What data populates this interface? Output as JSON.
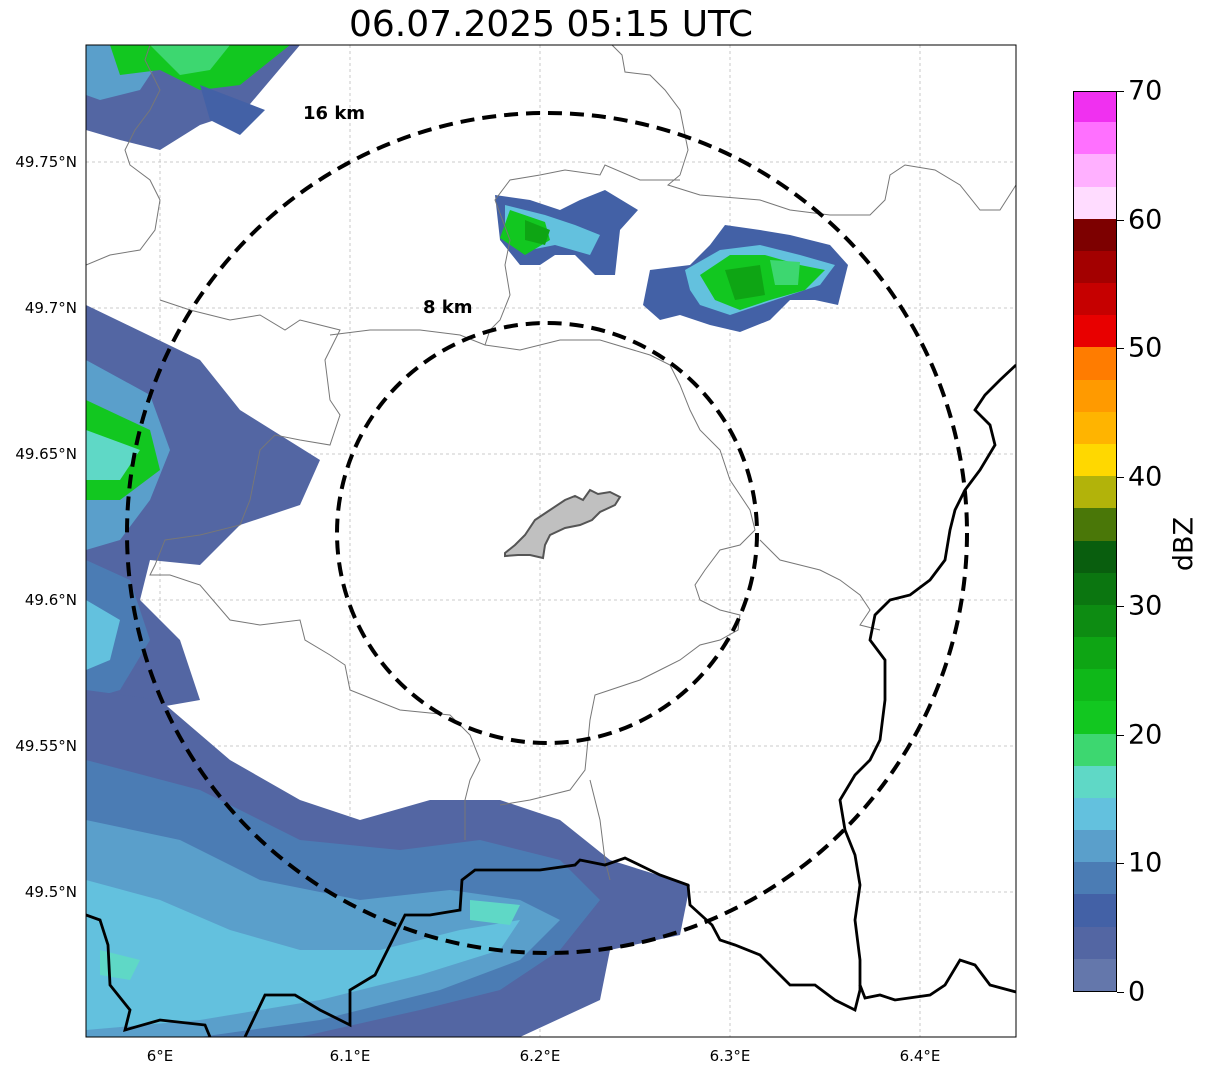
{
  "title": "06.07.2025 05:15 UTC",
  "lon_ticks": [
    {
      "lon": 6.0,
      "label": "6°E"
    },
    {
      "lon": 6.1,
      "label": "6.1°E"
    },
    {
      "lon": 6.2,
      "label": "6.2°E"
    },
    {
      "lon": 6.3,
      "label": "6.3°E"
    },
    {
      "lon": 6.4,
      "label": "6.4°E"
    }
  ],
  "lat_ticks": [
    {
      "lat": 49.75,
      "label": "49.75°N"
    },
    {
      "lat": 49.7,
      "label": "49.7°N"
    },
    {
      "lat": 49.65,
      "label": "49.65°N"
    },
    {
      "lat": 49.6,
      "label": "49.6°N"
    },
    {
      "lat": 49.55,
      "label": "49.55°N"
    },
    {
      "lat": 49.5,
      "label": "49.5°N"
    }
  ],
  "extent": {
    "lon": [
      5.96,
      6.45
    ],
    "lat": [
      49.45,
      49.79
    ]
  },
  "rings": [
    {
      "label": "8 km",
      "radius_km": 8
    },
    {
      "label": "16 km",
      "radius_km": 16
    }
  ],
  "colorbar": {
    "label": "dBZ",
    "min": 0,
    "max": 70,
    "ticks": [
      "0",
      "10",
      "20",
      "30",
      "40",
      "50",
      "60",
      "70"
    ],
    "colors": [
      "#6477ab",
      "#5366a3",
      "#4361a6",
      "#4b7cb4",
      "#5a9fcb",
      "#63c1de",
      "#5fd8c6",
      "#3dd770",
      "#12c720",
      "#0fb819",
      "#0ea514",
      "#0d8c12",
      "#0b7610",
      "#095e0e",
      "#4a7708",
      "#b2b30a",
      "#ffd800",
      "#ffb400",
      "#ff9a00",
      "#ff7c00",
      "#e80000",
      "#c60000",
      "#a30000",
      "#7d0000",
      "#ffdcff",
      "#ffb0ff",
      "#ff70ff",
      "#f030f0"
    ]
  }
}
